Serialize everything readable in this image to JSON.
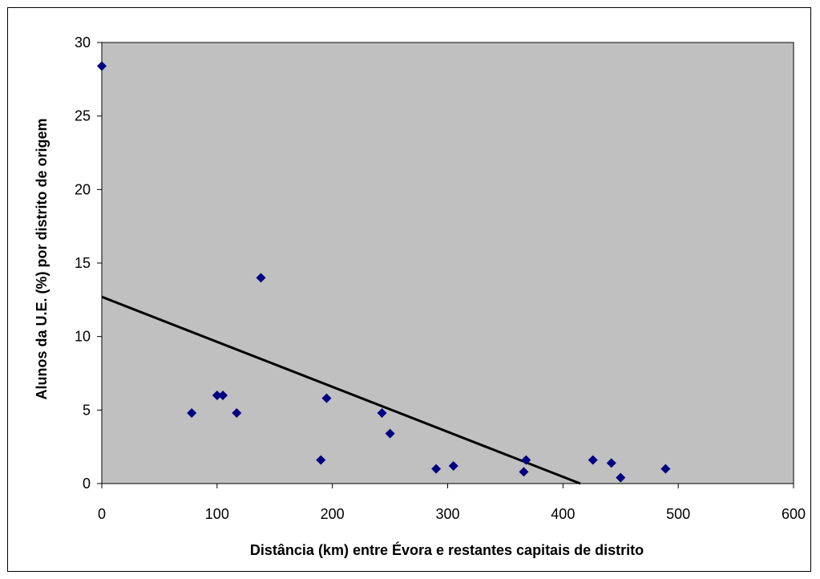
{
  "chart_data": {
    "type": "scatter",
    "title": "",
    "xlabel": "Distância (km) entre Évora e restantes capitais de distrito",
    "ylabel": "Alunos da U.E. (%) por distrito de origem",
    "xlim": [
      0,
      600
    ],
    "ylim": [
      0,
      30
    ],
    "xticks": [
      0,
      100,
      200,
      300,
      400,
      500,
      600
    ],
    "yticks": [
      0,
      5,
      10,
      15,
      20,
      25,
      30
    ],
    "x_tick_labels": [
      "0",
      "100",
      "200",
      "300",
      "400",
      "500",
      "600"
    ],
    "y_tick_labels": [
      "0",
      "5",
      "10",
      "15",
      "20",
      "25",
      "30"
    ],
    "grid": false,
    "legend": "none",
    "plot_background": "#c0c0c0",
    "marker_color": "#000080",
    "marker": "diamond",
    "trendline_color": "#000000",
    "points": [
      {
        "x": 0,
        "y": 28.4
      },
      {
        "x": 78,
        "y": 4.8
      },
      {
        "x": 100,
        "y": 6.0
      },
      {
        "x": 105,
        "y": 6.0
      },
      {
        "x": 117,
        "y": 4.8
      },
      {
        "x": 138,
        "y": 14.0
      },
      {
        "x": 190,
        "y": 1.6
      },
      {
        "x": 195,
        "y": 5.8
      },
      {
        "x": 243,
        "y": 4.8
      },
      {
        "x": 250,
        "y": 3.4
      },
      {
        "x": 290,
        "y": 1.0
      },
      {
        "x": 305,
        "y": 1.2
      },
      {
        "x": 366,
        "y": 0.8
      },
      {
        "x": 368,
        "y": 1.6
      },
      {
        "x": 426,
        "y": 1.6
      },
      {
        "x": 442,
        "y": 1.4
      },
      {
        "x": 450,
        "y": 0.4
      },
      {
        "x": 489,
        "y": 1.0
      }
    ],
    "trendline": {
      "x": [
        0,
        415
      ],
      "y": [
        12.7,
        0
      ]
    }
  }
}
